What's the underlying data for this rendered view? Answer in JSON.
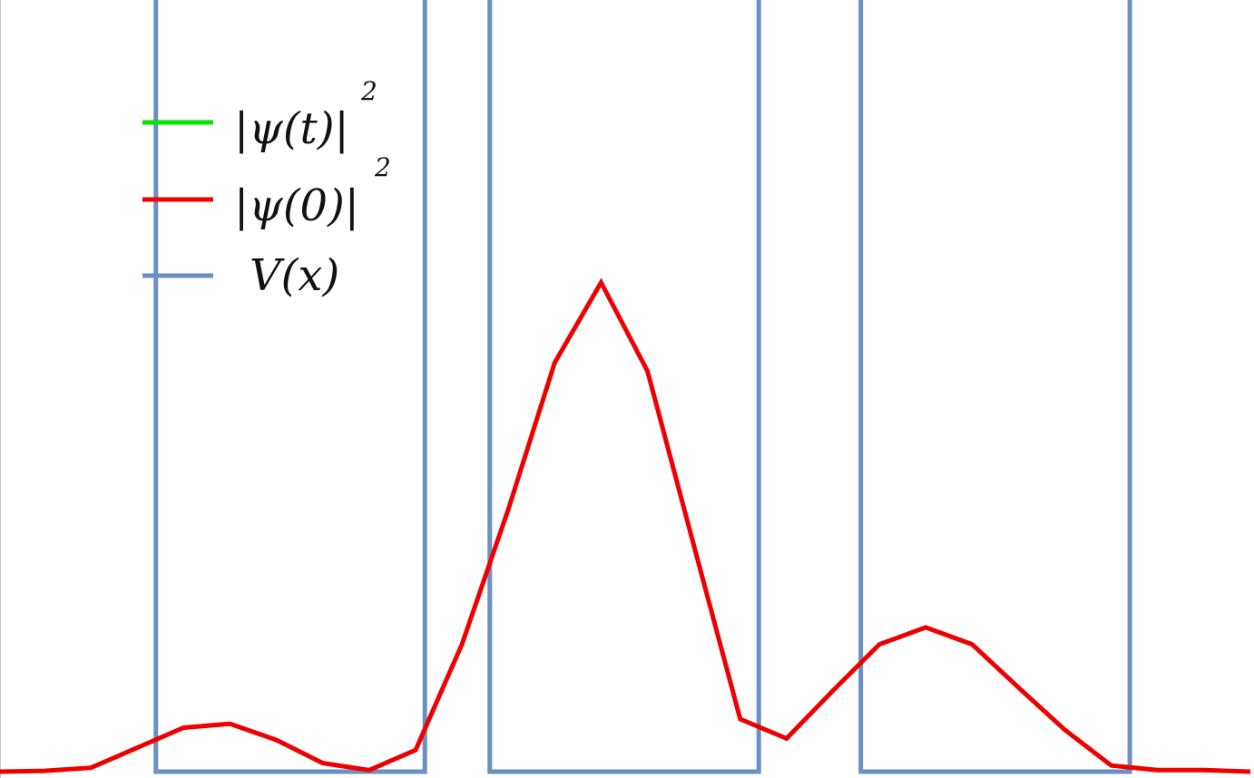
{
  "chart_data": {
    "type": "line",
    "title": "",
    "xlabel": "",
    "ylabel": "",
    "xlim": [
      0,
      27
    ],
    "ylim": [
      0,
      1.0
    ],
    "grid": false,
    "legend_position": "top-left",
    "series": [
      {
        "name": "|ψ(t)|",
        "superscript": "2",
        "color": "#00e600",
        "x": [],
        "y": []
      },
      {
        "name": "|ψ(0)|",
        "superscript": "2",
        "color": "#ee0000",
        "x": [
          0,
          1,
          2,
          3,
          4,
          5,
          6,
          7,
          8,
          9,
          10,
          11,
          12,
          13,
          14,
          15,
          16,
          17,
          18,
          19,
          20,
          21,
          22,
          23,
          24,
          25,
          26,
          27
        ],
        "y": [
          0.0,
          0.001,
          0.005,
          0.031,
          0.057,
          0.062,
          0.041,
          0.011,
          0.002,
          0.028,
          0.165,
          0.34,
          0.53,
          0.634,
          0.519,
          0.293,
          0.068,
          0.043,
          0.105,
          0.165,
          0.187,
          0.165,
          0.109,
          0.054,
          0.008,
          0.002,
          0.002,
          0.0
        ]
      },
      {
        "name": "V(x)",
        "superscript": "",
        "color": "#6a8fc0",
        "type": "barriers",
        "wells": [
          [
            3.4,
            9.2
          ],
          [
            10.6,
            16.4
          ],
          [
            18.6,
            24.4
          ]
        ],
        "top": 1.0,
        "bottom": 0.0
      }
    ]
  }
}
